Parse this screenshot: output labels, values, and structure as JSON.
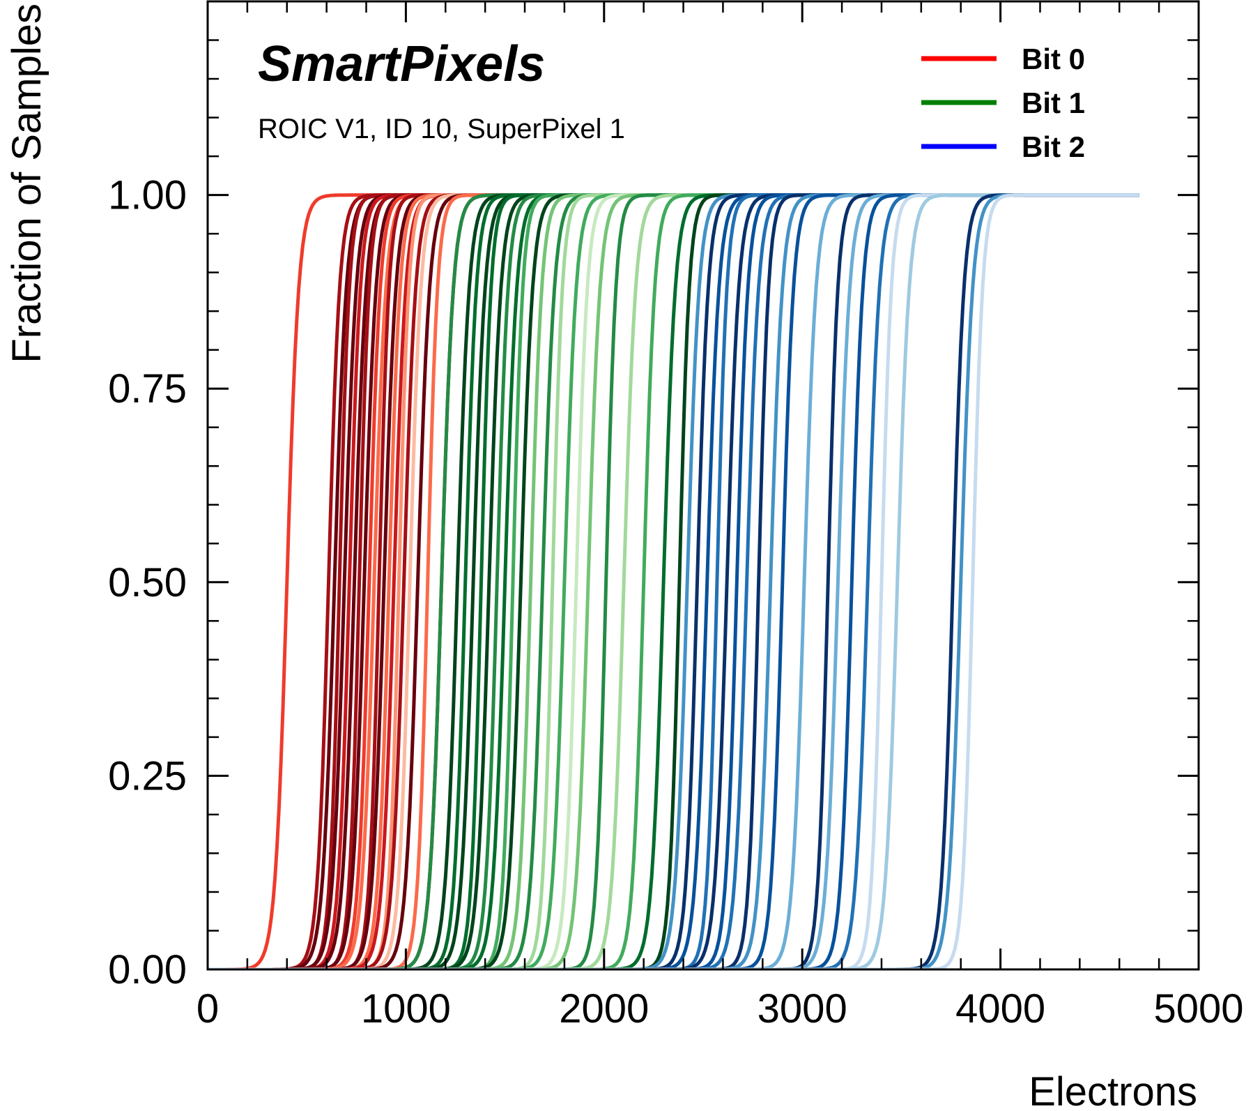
{
  "chart_data": {
    "type": "line",
    "brand": "SmartPixels",
    "subtitle": "ROIC V1, ID 10, SuperPixel 1",
    "xlabel": "Electrons",
    "ylabel": "Fraction of Samples",
    "xlim": [
      0,
      5000
    ],
    "ylim": [
      0,
      1.25
    ],
    "x_ticks": [
      0,
      1000,
      2000,
      3000,
      4000,
      5000
    ],
    "x_tick_labels": [
      "0",
      "1000",
      "2000",
      "3000",
      "4000",
      "5000"
    ],
    "y_ticks": [
      0.0,
      0.25,
      0.5,
      0.75,
      1.0
    ],
    "y_tick_labels": [
      "0.00",
      "0.25",
      "0.50",
      "0.75",
      "1.00"
    ],
    "x_minor_step": 200,
    "y_minor_step": 0.05,
    "grid": false,
    "legend_position": "top-right",
    "legend": [
      {
        "name": "Bit 0",
        "color": "#ff0000"
      },
      {
        "name": "Bit 1",
        "color": "#008000"
      },
      {
        "name": "Bit 2",
        "color": "#0000ff"
      }
    ],
    "series_groups": [
      {
        "name": "Bit 0",
        "palette": [
          "#67000d",
          "#a50f15",
          "#cb181d",
          "#ef3b2c",
          "#fb6a4a",
          "#fc9272",
          "#fcbba1"
        ],
        "x_max": 1500,
        "curves": [
          {
            "x50": 400,
            "width": 30,
            "color_index": 3
          },
          {
            "x50": 610,
            "width": 28,
            "color_index": 1
          },
          {
            "x50": 640,
            "width": 30,
            "color_index": 0
          },
          {
            "x50": 665,
            "width": 25,
            "color_index": 1
          },
          {
            "x50": 690,
            "width": 30,
            "color_index": 0
          },
          {
            "x50": 715,
            "width": 28,
            "color_index": 2
          },
          {
            "x50": 740,
            "width": 30,
            "color_index": 0
          },
          {
            "x50": 765,
            "width": 25,
            "color_index": 1
          },
          {
            "x50": 790,
            "width": 30,
            "color_index": 0
          },
          {
            "x50": 815,
            "width": 28,
            "color_index": 3
          },
          {
            "x50": 840,
            "width": 30,
            "color_index": 4
          },
          {
            "x50": 865,
            "width": 25,
            "color_index": 1
          },
          {
            "x50": 890,
            "width": 30,
            "color_index": 0
          },
          {
            "x50": 915,
            "width": 28,
            "color_index": 4
          },
          {
            "x50": 940,
            "width": 30,
            "color_index": 2
          },
          {
            "x50": 965,
            "width": 25,
            "color_index": 5
          },
          {
            "x50": 990,
            "width": 30,
            "color_index": 1
          },
          {
            "x50": 1020,
            "width": 28,
            "color_index": 6
          },
          {
            "x50": 1060,
            "width": 30,
            "color_index": 0
          },
          {
            "x50": 1110,
            "width": 25,
            "color_index": 4
          },
          {
            "x50": 1180,
            "width": 30,
            "color_index": 1
          }
        ]
      },
      {
        "name": "Bit 1",
        "palette": [
          "#00441b",
          "#006d2c",
          "#238b45",
          "#41ab5d",
          "#74c476",
          "#a1d99b",
          "#c7e9c0"
        ],
        "x_max": 2850,
        "curves": [
          {
            "x50": 1180,
            "width": 30,
            "color_index": 2
          },
          {
            "x50": 1260,
            "width": 30,
            "color_index": 0
          },
          {
            "x50": 1300,
            "width": 28,
            "color_index": 1
          },
          {
            "x50": 1340,
            "width": 30,
            "color_index": 0
          },
          {
            "x50": 1380,
            "width": 25,
            "color_index": 1
          },
          {
            "x50": 1420,
            "width": 30,
            "color_index": 0
          },
          {
            "x50": 1460,
            "width": 28,
            "color_index": 2
          },
          {
            "x50": 1500,
            "width": 30,
            "color_index": 1
          },
          {
            "x50": 1540,
            "width": 25,
            "color_index": 3
          },
          {
            "x50": 1580,
            "width": 30,
            "color_index": 0
          },
          {
            "x50": 1630,
            "width": 28,
            "color_index": 4
          },
          {
            "x50": 1690,
            "width": 30,
            "color_index": 2
          },
          {
            "x50": 1740,
            "width": 25,
            "color_index": 5
          },
          {
            "x50": 1800,
            "width": 30,
            "color_index": 3
          },
          {
            "x50": 1860,
            "width": 28,
            "color_index": 6
          },
          {
            "x50": 1920,
            "width": 30,
            "color_index": 4
          },
          {
            "x50": 2010,
            "width": 25,
            "color_index": 2
          },
          {
            "x50": 2100,
            "width": 30,
            "color_index": 5
          },
          {
            "x50": 2200,
            "width": 28,
            "color_index": 3
          },
          {
            "x50": 2300,
            "width": 30,
            "color_index": 1
          },
          {
            "x50": 2380,
            "width": 25,
            "color_index": 0
          }
        ]
      },
      {
        "name": "Bit 2",
        "palette": [
          "#08306b",
          "#08519c",
          "#2171b5",
          "#4292c6",
          "#6baed6",
          "#9ecae1",
          "#c6dbef"
        ],
        "x_max": 4700,
        "curves": [
          {
            "x50": 2420,
            "width": 30,
            "color_index": 3
          },
          {
            "x50": 2470,
            "width": 28,
            "color_index": 0
          },
          {
            "x50": 2520,
            "width": 30,
            "color_index": 1
          },
          {
            "x50": 2570,
            "width": 25,
            "color_index": 2
          },
          {
            "x50": 2620,
            "width": 30,
            "color_index": 0
          },
          {
            "x50": 2670,
            "width": 28,
            "color_index": 1
          },
          {
            "x50": 2720,
            "width": 30,
            "color_index": 2
          },
          {
            "x50": 2780,
            "width": 25,
            "color_index": 0
          },
          {
            "x50": 2840,
            "width": 30,
            "color_index": 3
          },
          {
            "x50": 2900,
            "width": 28,
            "color_index": 1
          },
          {
            "x50": 3010,
            "width": 30,
            "color_index": 4
          },
          {
            "x50": 3130,
            "width": 25,
            "color_index": 0
          },
          {
            "x50": 3180,
            "width": 30,
            "color_index": 4
          },
          {
            "x50": 3250,
            "width": 28,
            "color_index": 1
          },
          {
            "x50": 3330,
            "width": 30,
            "color_index": 2
          },
          {
            "x50": 3400,
            "width": 25,
            "color_index": 6
          },
          {
            "x50": 3480,
            "width": 30,
            "color_index": 5
          },
          {
            "x50": 3760,
            "width": 28,
            "color_index": 0
          },
          {
            "x50": 3800,
            "width": 30,
            "color_index": 3
          },
          {
            "x50": 3860,
            "width": 25,
            "color_index": 6
          }
        ]
      }
    ]
  }
}
